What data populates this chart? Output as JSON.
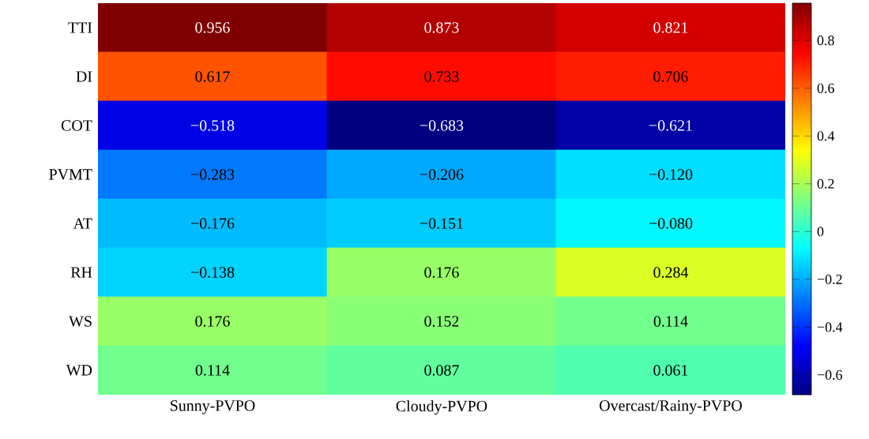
{
  "chart_data": {
    "type": "heatmap",
    "categories": [
      "Sunny-PVPO",
      "Cloudy-PVPO",
      "Overcast/Rainy-PVPO"
    ],
    "y_categories": [
      "TTI",
      "DI",
      "COT",
      "PVMT",
      "AT",
      "RH",
      "WS",
      "WD"
    ],
    "cells": [
      [
        0.956,
        0.873,
        0.821
      ],
      [
        0.617,
        0.733,
        0.706
      ],
      [
        -0.518,
        -0.683,
        -0.621
      ],
      [
        -0.283,
        -0.206,
        -0.12
      ],
      [
        -0.176,
        -0.151,
        -0.08
      ],
      [
        -0.138,
        0.176,
        0.284
      ],
      [
        0.176,
        0.152,
        0.114
      ],
      [
        0.114,
        0.087,
        0.061
      ]
    ],
    "cell_labels": [
      [
        "0.956",
        "0.873",
        "0.821"
      ],
      [
        "0.617",
        "0.733",
        "0.706"
      ],
      [
        "−0.518",
        "−0.683",
        "−0.621"
      ],
      [
        "−0.283",
        "−0.206",
        "−0.120"
      ],
      [
        "−0.176",
        "−0.151",
        "−0.080"
      ],
      [
        "−0.138",
        "0.176",
        "0.284"
      ],
      [
        "0.176",
        "0.152",
        "0.114"
      ],
      [
        "0.114",
        "0.087",
        "0.061"
      ]
    ],
    "clim": [
      -0.683,
      0.956
    ],
    "cticks": [
      {
        "value": -0.6,
        "label": "−0.6"
      },
      {
        "value": -0.4,
        "label": "−0.4"
      },
      {
        "value": -0.2,
        "label": "−0.2"
      },
      0,
      0.2,
      0.4,
      0.6,
      0.8
    ]
  }
}
